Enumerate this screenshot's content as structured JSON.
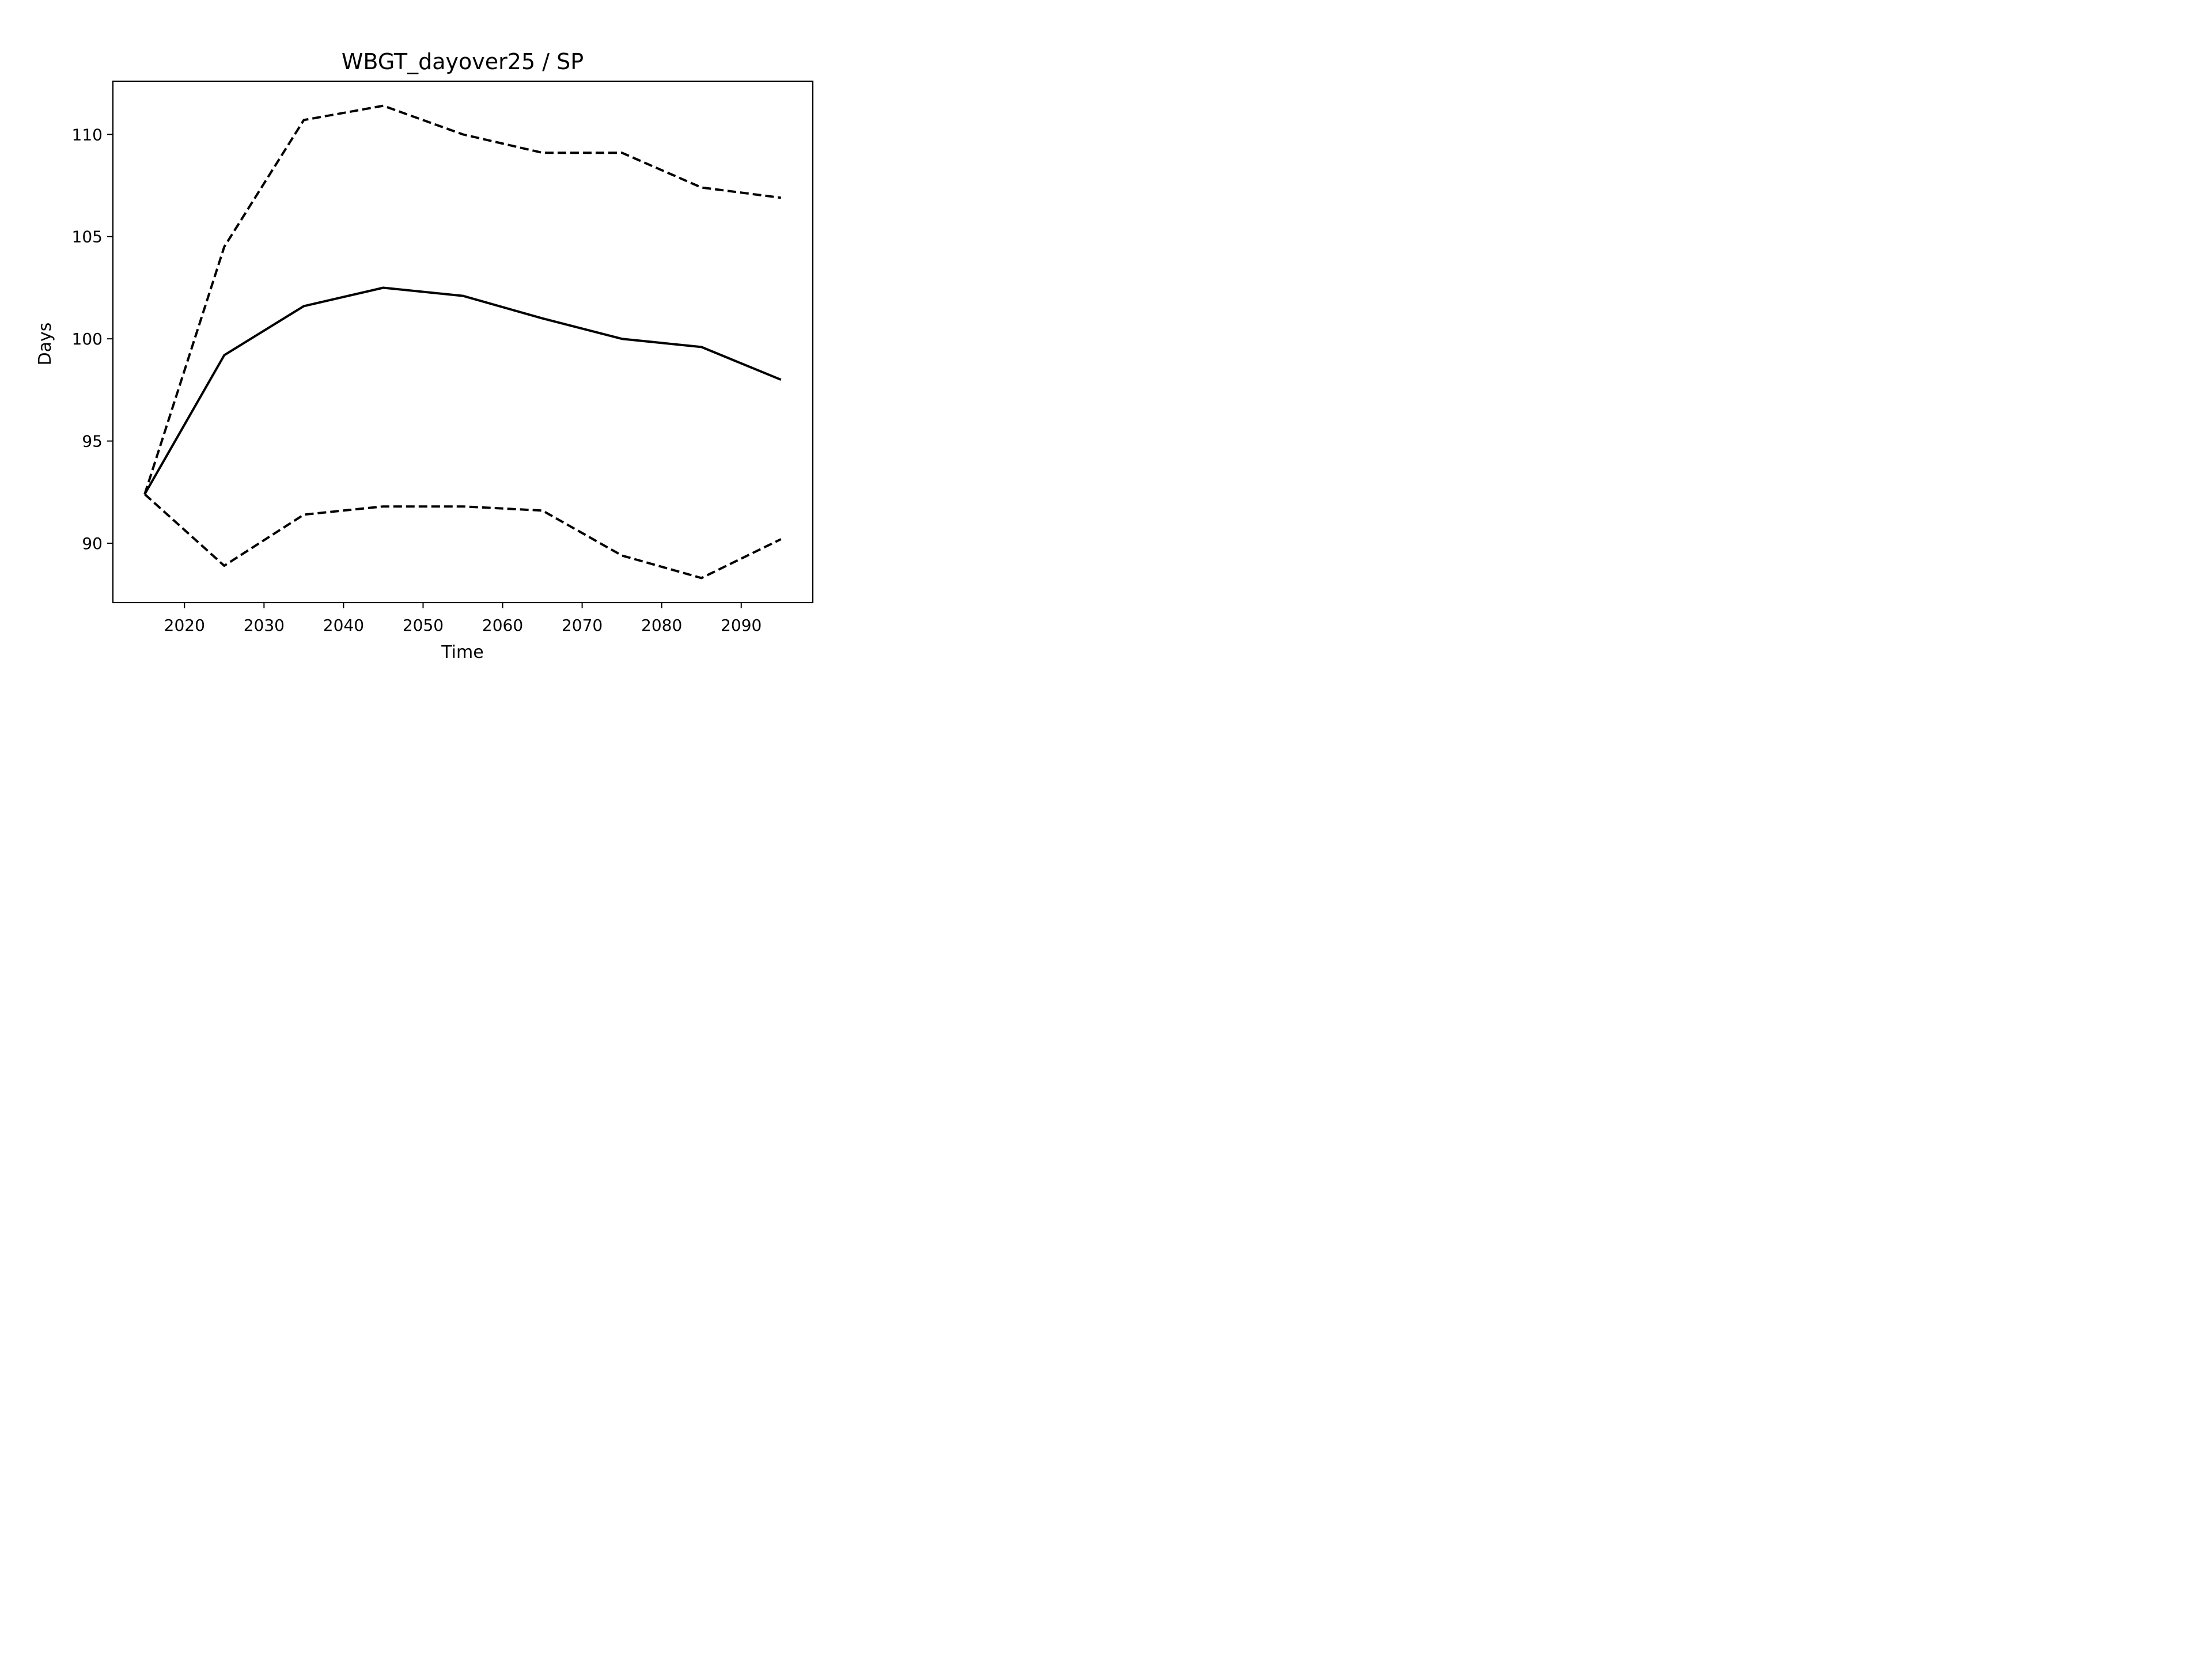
{
  "chart_data": {
    "type": "line",
    "title": "WBGT_dayover25 / SP",
    "xlabel": "Time",
    "ylabel": "Days",
    "xlim": [
      2011,
      2099
    ],
    "ylim": [
      87.1,
      112.6
    ],
    "xticks": [
      2020,
      2030,
      2040,
      2050,
      2060,
      2070,
      2080,
      2090
    ],
    "yticks": [
      90,
      95,
      100,
      105,
      110
    ],
    "grid": false,
    "x": [
      2015,
      2025,
      2035,
      2045,
      2055,
      2065,
      2075,
      2085,
      2095
    ],
    "series": [
      {
        "values": [
          92.4,
          99.2,
          101.6,
          102.5,
          102.1,
          101.0,
          100.0,
          99.6,
          98.0
        ],
        "style": "solid",
        "color": "#000000"
      },
      {
        "values": [
          92.4,
          104.5,
          110.7,
          111.4,
          110.0,
          109.1,
          109.1,
          107.4,
          106.9
        ],
        "style": "dashed",
        "color": "#000000"
      },
      {
        "values": [
          92.4,
          88.9,
          91.4,
          91.8,
          91.8,
          91.6,
          89.4,
          88.3,
          90.2
        ],
        "style": "dashed",
        "color": "#000000"
      }
    ]
  }
}
